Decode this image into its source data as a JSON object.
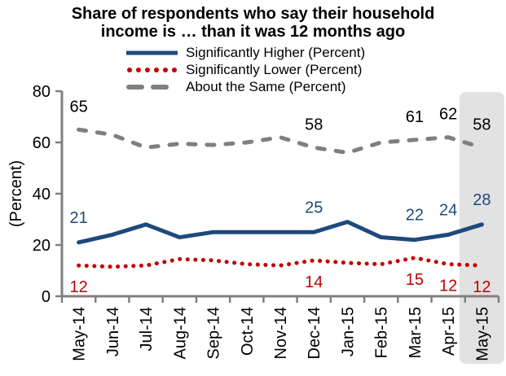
{
  "title": "Share of respondents who say their household income is … than it was 12 months ago",
  "y_axis_title": "(Percent)",
  "colors": {
    "higher_blue": "#1f497d",
    "lower_red": "#c00000",
    "same_gray": "#7f7f7f",
    "axis_gray": "#808080",
    "highlight_band": "#e2e2e2"
  },
  "chart_data": {
    "type": "line",
    "title": "Share of respondents who say their household income is … than it was 12 months ago",
    "xlabel": "",
    "ylabel": "(Percent)",
    "ylim": [
      0,
      80
    ],
    "yticks": [
      0,
      20,
      40,
      60,
      80
    ],
    "grid": false,
    "legend_position": "top",
    "highlight_category": "May-15",
    "highlight_color": "#e2e2e2",
    "axis_color": "#808080",
    "categories": [
      "May-14",
      "Jun-14",
      "Jul-14",
      "Aug-14",
      "Sep-14",
      "Oct-14",
      "Nov-14",
      "Dec-14",
      "Jan-15",
      "Feb-15",
      "Mar-15",
      "Apr-15",
      "May-15"
    ],
    "series": [
      {
        "name": "Significantly Higher (Percent)",
        "style": "solid",
        "color": "#1f497d",
        "label_color": "#1f497d",
        "values": [
          21,
          24,
          28,
          23,
          25,
          25,
          25,
          25,
          29,
          23,
          22,
          24,
          28
        ],
        "point_labels": {
          "0": "21",
          "7": "25",
          "10": "22",
          "11": "24",
          "12": "28"
        }
      },
      {
        "name": "Significantly Lower (Percent)",
        "style": "dotted",
        "color": "#c00000",
        "label_color": "#c00000",
        "values": [
          12,
          11.5,
          12,
          14.5,
          14,
          12.5,
          12,
          14,
          13,
          12.5,
          15,
          12.5,
          12
        ],
        "point_labels": {
          "0": "12",
          "7": "14",
          "10": "15",
          "11": "12",
          "12": "12"
        }
      },
      {
        "name": "About the Same (Percent)",
        "style": "dashed",
        "color": "#7f7f7f",
        "label_color": "#000000",
        "values": [
          65,
          63,
          58,
          59.5,
          59,
          60,
          62,
          58,
          56,
          60,
          61,
          62,
          58
        ],
        "point_labels": {
          "0": "65",
          "7": "58",
          "10": "61",
          "11": "62",
          "12": "58"
        }
      }
    ]
  }
}
